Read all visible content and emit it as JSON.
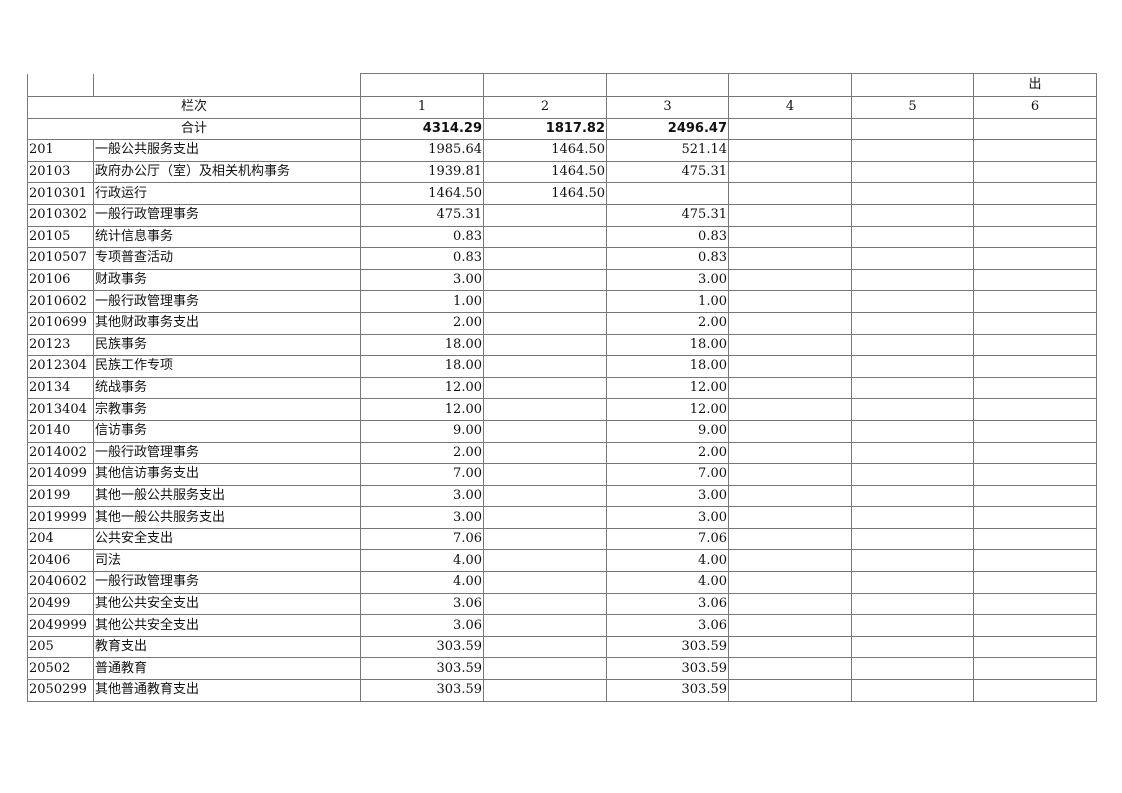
{
  "header": {
    "top_label": "出",
    "column_label": "栏次",
    "column_numbers": [
      "1",
      "2",
      "3",
      "4",
      "5",
      "6"
    ]
  },
  "total": {
    "label": "合计",
    "values": [
      "4314.29",
      "1817.82",
      "2496.47",
      "",
      "",
      ""
    ]
  },
  "rows": [
    {
      "code": "201",
      "name": "一般公共服务支出",
      "v": [
        "1985.64",
        "1464.50",
        "521.14"
      ]
    },
    {
      "code": "20103",
      "name": "政府办公厅（室）及相关机构事务",
      "v": [
        "1939.81",
        "1464.50",
        "475.31"
      ]
    },
    {
      "code": "2010301",
      "name": "行政运行",
      "v": [
        "1464.50",
        "1464.50",
        ""
      ]
    },
    {
      "code": "2010302",
      "name": "一般行政管理事务",
      "v": [
        "475.31",
        "",
        "475.31"
      ]
    },
    {
      "code": "20105",
      "name": "统计信息事务",
      "v": [
        "0.83",
        "",
        "0.83"
      ]
    },
    {
      "code": "2010507",
      "name": "专项普查活动",
      "v": [
        "0.83",
        "",
        "0.83"
      ]
    },
    {
      "code": "20106",
      "name": "财政事务",
      "v": [
        "3.00",
        "",
        "3.00"
      ]
    },
    {
      "code": "2010602",
      "name": "一般行政管理事务",
      "v": [
        "1.00",
        "",
        "1.00"
      ]
    },
    {
      "code": "2010699",
      "name": "其他财政事务支出",
      "v": [
        "2.00",
        "",
        "2.00"
      ]
    },
    {
      "code": "20123",
      "name": "民族事务",
      "v": [
        "18.00",
        "",
        "18.00"
      ]
    },
    {
      "code": "2012304",
      "name": "民族工作专项",
      "v": [
        "18.00",
        "",
        "18.00"
      ]
    },
    {
      "code": "20134",
      "name": "统战事务",
      "v": [
        "12.00",
        "",
        "12.00"
      ]
    },
    {
      "code": "2013404",
      "name": "宗教事务",
      "v": [
        "12.00",
        "",
        "12.00"
      ]
    },
    {
      "code": "20140",
      "name": "信访事务",
      "v": [
        "9.00",
        "",
        "9.00"
      ]
    },
    {
      "code": "2014002",
      "name": "一般行政管理事务",
      "v": [
        "2.00",
        "",
        "2.00"
      ]
    },
    {
      "code": "2014099",
      "name": "其他信访事务支出",
      "v": [
        "7.00",
        "",
        "7.00"
      ]
    },
    {
      "code": "20199",
      "name": "其他一般公共服务支出",
      "v": [
        "3.00",
        "",
        "3.00"
      ]
    },
    {
      "code": "2019999",
      "name": "其他一般公共服务支出",
      "v": [
        "3.00",
        "",
        "3.00"
      ]
    },
    {
      "code": "204",
      "name": "公共安全支出",
      "v": [
        "7.06",
        "",
        "7.06"
      ]
    },
    {
      "code": "20406",
      "name": "司法",
      "v": [
        "4.00",
        "",
        "4.00"
      ]
    },
    {
      "code": "2040602",
      "name": "一般行政管理事务",
      "v": [
        "4.00",
        "",
        "4.00"
      ]
    },
    {
      "code": "20499",
      "name": "其他公共安全支出",
      "v": [
        "3.06",
        "",
        "3.06"
      ]
    },
    {
      "code": "2049999",
      "name": "其他公共安全支出",
      "v": [
        "3.06",
        "",
        "3.06"
      ]
    },
    {
      "code": "205",
      "name": "教育支出",
      "v": [
        "303.59",
        "",
        "303.59"
      ]
    },
    {
      "code": "20502",
      "name": "普通教育",
      "v": [
        "303.59",
        "",
        "303.59"
      ]
    },
    {
      "code": "2050299",
      "name": "其他普通教育支出",
      "v": [
        "303.59",
        "",
        "303.59"
      ]
    }
  ]
}
